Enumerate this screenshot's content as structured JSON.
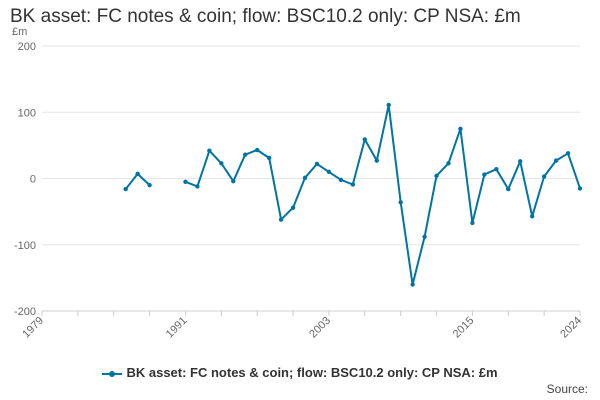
{
  "title": "BK asset: FC notes & coin; flow: BSC10.2 only: CP NSA: £m",
  "source_label": "Source:",
  "legend_label": "BK asset: FC notes & coin; flow: BSC10.2 only: CP NSA: £m",
  "series_color": "#0075a3",
  "chart_data": {
    "type": "line",
    "title": "BK asset: FC notes & coin; flow: BSC10.2 only: CP NSA: £m",
    "ylabel": "£m",
    "xlabel": "",
    "ylim": [
      -200,
      200
    ],
    "xlim": [
      1979,
      2024
    ],
    "y_ticks": [
      -200,
      -100,
      0,
      100,
      200
    ],
    "x_ticks": [
      "1979",
      "1991",
      "2003",
      "2015",
      "2024"
    ],
    "grid": true,
    "legend_position": "bottom",
    "series": [
      {
        "name": "BK asset: FC notes & coin; flow: BSC10.2 only: CP NSA: £m",
        "points": [
          [
            1986,
            -16
          ],
          [
            1987,
            7
          ],
          [
            1988,
            -10
          ],
          [
            1991,
            -5
          ],
          [
            1992,
            -12
          ],
          [
            1993,
            42
          ],
          [
            1994,
            23
          ],
          [
            1995,
            -4
          ],
          [
            1996,
            36
          ],
          [
            1997,
            43
          ],
          [
            1998,
            31
          ],
          [
            1999,
            -62
          ],
          [
            2000,
            -44
          ],
          [
            2001,
            1
          ],
          [
            2002,
            22
          ],
          [
            2003,
            10
          ],
          [
            2004,
            -2
          ],
          [
            2005,
            -9
          ],
          [
            2006,
            59
          ],
          [
            2007,
            27
          ],
          [
            2008,
            111
          ],
          [
            2009,
            -36
          ],
          [
            2010,
            -160
          ],
          [
            2011,
            -88
          ],
          [
            2012,
            4
          ],
          [
            2013,
            23
          ],
          [
            2014,
            75
          ],
          [
            2015,
            -67
          ],
          [
            2016,
            6
          ],
          [
            2017,
            14
          ],
          [
            2018,
            -16
          ],
          [
            2019,
            26
          ],
          [
            2020,
            -57
          ],
          [
            2021,
            3
          ],
          [
            2022,
            27
          ],
          [
            2023,
            38
          ],
          [
            2024,
            -15
          ]
        ]
      }
    ]
  }
}
